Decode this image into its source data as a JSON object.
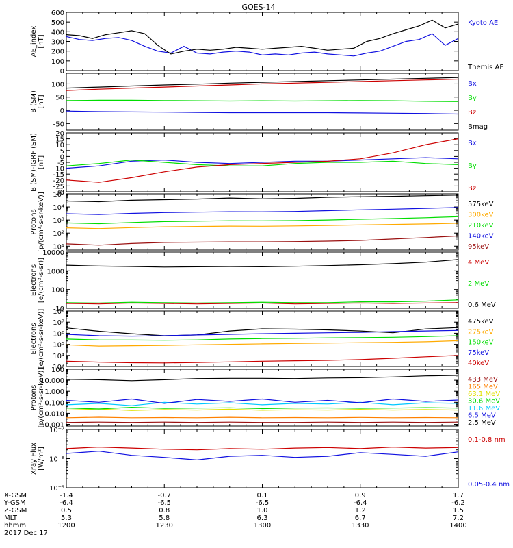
{
  "title": "GOES-14",
  "colors": {
    "black": "#000000",
    "blue": "#1010e0",
    "green": "#00dd00",
    "red": "#cc0000",
    "orange": "#ffaa00",
    "darkred": "#9a1010",
    "darkorange": "#ff8000",
    "yellow": "#e0e000",
    "cyan": "#00c8ff",
    "magenta": "#d000d0"
  },
  "chart_data": [
    {
      "type": "line",
      "ylabel": "AE_index\n[nT]",
      "scale": "linear",
      "ylim": [
        0,
        600
      ],
      "yticks": [
        0,
        100,
        200,
        300,
        400,
        500,
        600
      ],
      "yticklabels": [
        "0",
        "100",
        "200",
        "300",
        "400",
        "500",
        "600"
      ],
      "x": [
        0,
        4,
        8,
        12,
        16,
        20,
        24,
        28,
        32,
        36,
        40,
        44,
        48,
        52,
        56,
        60,
        64,
        68,
        72,
        76,
        80,
        84,
        88,
        92,
        96,
        100,
        104,
        108,
        112,
        116,
        120
      ],
      "series": [
        {
          "name": "Kyoto AE",
          "color": "#1010e0",
          "values": [
            350,
            320,
            310,
            330,
            340,
            310,
            250,
            200,
            180,
            250,
            180,
            170,
            190,
            200,
            190,
            160,
            170,
            160,
            180,
            190,
            170,
            160,
            150,
            180,
            200,
            250,
            300,
            320,
            380,
            260,
            330
          ]
        },
        {
          "name": "Themis AE",
          "color": "#000000",
          "values": [
            370,
            360,
            330,
            370,
            390,
            410,
            380,
            260,
            170,
            200,
            220,
            210,
            220,
            240,
            230,
            220,
            230,
            240,
            250,
            230,
            210,
            220,
            230,
            300,
            330,
            380,
            420,
            460,
            520,
            440,
            480
          ]
        }
      ]
    },
    {
      "type": "line",
      "ylabel": "B (SM)\n[nT]",
      "scale": "linear",
      "ylim": [
        -75,
        140
      ],
      "yticks": [
        -50,
        0,
        50,
        100
      ],
      "yticklabels": [
        "-50",
        "0",
        "50",
        "100"
      ],
      "x": [
        0,
        10,
        20,
        30,
        40,
        50,
        60,
        70,
        80,
        90,
        100,
        110,
        120
      ],
      "series": [
        {
          "name": "Bx",
          "color": "#1010e0",
          "values": [
            -3,
            -5,
            -6,
            -7,
            -8,
            -9,
            -9,
            -9,
            -9,
            -10,
            -11,
            -12,
            -14
          ]
        },
        {
          "name": "By",
          "color": "#00dd00",
          "values": [
            37,
            38,
            38,
            37,
            36,
            35,
            36,
            35,
            36,
            37,
            36,
            34,
            33
          ]
        },
        {
          "name": "Bz",
          "color": "#cc0000",
          "values": [
            75,
            80,
            84,
            88,
            92,
            96,
            100,
            103,
            106,
            109,
            112,
            115,
            118
          ]
        },
        {
          "name": "Bmag",
          "color": "#000000",
          "values": [
            84,
            88,
            92,
            96,
            99,
            103,
            106,
            109,
            112,
            115,
            118,
            121,
            124
          ]
        }
      ]
    },
    {
      "type": "line",
      "ylabel": "B (SM)-IGRF (SM)\n[nT]",
      "scale": "linear",
      "ylim": [
        -30,
        20
      ],
      "yticks": [
        -30,
        -25,
        -20,
        -15,
        -10,
        -5,
        0,
        5,
        10,
        15,
        20
      ],
      "yticklabels": [
        "-30",
        "-25",
        "-20",
        "-15",
        "-10",
        "-5",
        "0",
        "5",
        "10",
        "15",
        "20"
      ],
      "x": [
        0,
        10,
        20,
        30,
        40,
        50,
        60,
        70,
        80,
        90,
        100,
        110,
        120
      ],
      "series": [
        {
          "name": "Bx",
          "color": "#1010e0",
          "values": [
            -10,
            -8,
            -4,
            -3,
            -5,
            -6,
            -5,
            -4,
            -4,
            -3,
            -2,
            -1,
            -2
          ]
        },
        {
          "name": "By",
          "color": "#00dd00",
          "values": [
            -8,
            -6,
            -3,
            -5,
            -7,
            -8,
            -8,
            -6,
            -5,
            -5,
            -4,
            -6,
            -7
          ]
        },
        {
          "name": "Bz",
          "color": "#cc0000",
          "values": [
            -20,
            -22,
            -18,
            -13,
            -9,
            -7,
            -6,
            -5,
            -4,
            -2,
            3,
            10,
            15
          ]
        }
      ]
    },
    {
      "type": "line",
      "ylabel": "Protons\n[p/(cm²-s-sr-keV)]",
      "scale": "log",
      "ylim": [
        5,
        100000
      ],
      "yticks": [
        10,
        100,
        1000,
        10000,
        100000
      ],
      "yticklabels": [
        "10¹",
        "10²",
        "10³",
        "10⁴",
        "10⁵"
      ],
      "x": [
        0,
        10,
        20,
        30,
        40,
        50,
        60,
        70,
        80,
        90,
        100,
        110,
        120
      ],
      "series": [
        {
          "name": "575keV",
          "color": "#000000",
          "values": [
            28000,
            25000,
            32000,
            36000,
            40000,
            48000,
            42000,
            45000,
            55000,
            60000,
            65000,
            72000,
            80000
          ]
        },
        {
          "name": "300keV",
          "color": "#ffaa00",
          "values": [
            250,
            220,
            260,
            300,
            320,
            340,
            330,
            350,
            380,
            420,
            460,
            500,
            560
          ]
        },
        {
          "name": "210keV",
          "color": "#00dd00",
          "values": [
            600,
            520,
            640,
            760,
            820,
            880,
            860,
            900,
            1000,
            1150,
            1300,
            1500,
            1800
          ]
        },
        {
          "name": "140keV",
          "color": "#1010e0",
          "values": [
            3000,
            2600,
            3200,
            3700,
            4000,
            4300,
            4200,
            4500,
            5200,
            6000,
            6800,
            7800,
            9000
          ]
        },
        {
          "name": "95keV",
          "color": "#9a1010",
          "values": [
            15,
            12,
            16,
            19,
            20,
            21,
            21,
            22,
            24,
            27,
            35,
            45,
            60
          ]
        }
      ]
    },
    {
      "type": "line",
      "ylabel": "Electrons\n[e/(cm²-s-sr)]",
      "scale": "log",
      "ylim": [
        10,
        10000
      ],
      "yticks": [
        10,
        100,
        1000,
        10000
      ],
      "yticklabels": [
        "10",
        "100",
        "1000",
        "10000"
      ],
      "x": [
        0,
        10,
        20,
        30,
        40,
        50,
        60,
        70,
        80,
        90,
        100,
        110,
        120
      ],
      "series": [
        {
          "name": "4 MeV",
          "color": "#cc0000",
          "values": [
            18,
            17,
            19,
            18,
            17,
            18,
            19,
            17,
            18,
            19,
            18,
            19,
            20
          ]
        },
        {
          "name": "2 MeV",
          "color": "#00dd00",
          "values": [
            20,
            19,
            21,
            20,
            19,
            20,
            21,
            20,
            20,
            22,
            22,
            24,
            28
          ]
        },
        {
          "name": "0.6 MeV",
          "color": "#000000",
          "values": [
            2000,
            1800,
            1700,
            1600,
            1650,
            1700,
            1650,
            1750,
            1900,
            2100,
            2400,
            2900,
            4000
          ]
        }
      ]
    },
    {
      "type": "line",
      "ylabel": "Electrons\n[e/(cm²-s-sr-keV)]",
      "scale": "log",
      "ylim": [
        1000,
        100000000
      ],
      "yticks": [
        1000,
        10000,
        100000,
        1000000,
        10000000,
        100000000
      ],
      "yticklabels": [
        "10³",
        "10⁴",
        "10⁵",
        "10⁶",
        "10⁷",
        "10⁸"
      ],
      "x": [
        0,
        10,
        20,
        30,
        40,
        50,
        60,
        70,
        80,
        90,
        100,
        110,
        120
      ],
      "series": [
        {
          "name": "475keV",
          "color": "#000000",
          "values": [
            3000000,
            1500000,
            900000,
            600000,
            700000,
            1600000,
            2500000,
            2300000,
            2000000,
            1600000,
            1100000,
            2400000,
            3200000
          ]
        },
        {
          "name": "275keV",
          "color": "#ffaa00",
          "values": [
            90000,
            70000,
            75000,
            80000,
            90000,
            100000,
            110000,
            120000,
            130000,
            140000,
            150000,
            170000,
            210000
          ]
        },
        {
          "name": "150keV",
          "color": "#00dd00",
          "values": [
            300000,
            250000,
            240000,
            230000,
            250000,
            300000,
            330000,
            350000,
            380000,
            400000,
            430000,
            500000,
            600000
          ]
        },
        {
          "name": "75keV",
          "color": "#1010e0",
          "values": [
            800000,
            600000,
            550000,
            600000,
            700000,
            800000,
            900000,
            1000000,
            1100000,
            1200000,
            1400000,
            1600000,
            1800000
          ]
        },
        {
          "name": "40keV",
          "color": "#cc0000",
          "values": [
            3000,
            2500,
            2200,
            2100,
            2300,
            2600,
            3000,
            3300,
            3600,
            4200,
            5500,
            7500,
            10000
          ]
        }
      ]
    },
    {
      "type": "line",
      "ylabel": "Protons\n[p/(cm²-s-sr-keV)]",
      "scale": "log",
      "ylim": [
        0.0007,
        100
      ],
      "yticks": [
        0.001,
        0.01,
        0.1,
        1,
        10,
        100
      ],
      "yticklabels": [
        "0.001",
        "0.010",
        "0.100",
        "1.000",
        "10.000",
        "100"
      ],
      "x": [
        0,
        10,
        20,
        30,
        40,
        50,
        60,
        70,
        80,
        90,
        100,
        110,
        120
      ],
      "series": [
        {
          "name": "433 MeV",
          "color": "#9a1010",
          "values": [
            0.0015,
            0.0016,
            0.0015,
            0.0016,
            0.0015,
            0.0016,
            0.0015,
            0.0015,
            0.0016,
            0.0015,
            0.0016,
            0.0015,
            0.0016
          ]
        },
        {
          "name": "165 MeV",
          "color": "#ff8000",
          "values": [
            0.004,
            0.0045,
            0.004,
            0.0042,
            0.004,
            0.0044,
            0.004,
            0.0042,
            0.004,
            0.0043,
            0.004,
            0.0042,
            0.004
          ]
        },
        {
          "name": "63.1 MeV",
          "color": "#e0e000",
          "values": [
            0.02,
            0.025,
            0.018,
            0.022,
            0.02,
            0.024,
            0.019,
            0.021,
            0.02,
            0.023,
            0.02,
            0.022,
            0.02
          ]
        },
        {
          "name": "30.6 MeV",
          "color": "#00dd00",
          "values": [
            0.03,
            0.025,
            0.035,
            0.028,
            0.03,
            0.032,
            0.027,
            0.03,
            0.031,
            0.029,
            0.03,
            0.033,
            0.03
          ]
        },
        {
          "name": "11.6 MeV",
          "color": "#00c8ff",
          "values": [
            0.06,
            0.08,
            0.05,
            0.1,
            0.07,
            0.09,
            0.06,
            0.08,
            0.07,
            0.1,
            0.06,
            0.09,
            0.08
          ]
        },
        {
          "name": "6.5 MeV",
          "color": "#1010e0",
          "values": [
            0.15,
            0.1,
            0.2,
            0.08,
            0.18,
            0.12,
            0.2,
            0.1,
            0.15,
            0.09,
            0.2,
            0.12,
            0.16
          ]
        },
        {
          "name": "2.5 MeV",
          "color": "#000000",
          "values": [
            12,
            11,
            9,
            11,
            14,
            15,
            15,
            14,
            16,
            17,
            20,
            25,
            28
          ]
        }
      ]
    },
    {
      "type": "line",
      "ylabel": "Xray Flux\n[W/m²]",
      "scale": "log",
      "ylim": [
        1e-09,
        1e-07
      ],
      "yticks": [
        1e-09,
        1e-08,
        1e-07
      ],
      "yticklabels": [
        "10⁻⁹",
        "10⁻⁸",
        "10⁻⁷"
      ],
      "x": [
        0,
        10,
        20,
        30,
        40,
        50,
        60,
        70,
        80,
        90,
        100,
        110,
        120
      ],
      "series": [
        {
          "name": "0.1-0.8 nm",
          "color": "#cc0000",
          "values": [
            2.2e-08,
            2.5e-08,
            2.3e-08,
            2.1e-08,
            2e-08,
            2.2e-08,
            2.1e-08,
            2.3e-08,
            2.4e-08,
            2.2e-08,
            2.5e-08,
            2.3e-08,
            2.4e-08
          ]
        },
        {
          "name": "0.05-0.4 nm",
          "color": "#1010e0",
          "values": [
            1.5e-08,
            1.8e-08,
            1.3e-08,
            1.1e-08,
            9e-09,
            1.2e-08,
            1.3e-08,
            1.1e-08,
            1.2e-08,
            1.6e-08,
            1.4e-08,
            1.2e-08,
            1.7e-08
          ]
        }
      ]
    }
  ],
  "xaxis": {
    "tick_x": [
      0,
      30,
      60,
      90,
      120
    ],
    "rows": [
      {
        "label": "X-GSM",
        "values": [
          "-1.4",
          "-0.7",
          "0.1",
          "0.9",
          "1.7"
        ]
      },
      {
        "label": "Y-GSM",
        "values": [
          "-6.4",
          "-6.5",
          "-6.5",
          "-6.4",
          "-6.2"
        ]
      },
      {
        "label": "Z-GSM",
        "values": [
          "0.5",
          "0.8",
          "1.0",
          "1.2",
          "1.5"
        ]
      },
      {
        "label": "MLT",
        "values": [
          "5.3",
          "5.8",
          "6.3",
          "6.7",
          "7.2"
        ]
      },
      {
        "label": "hhmm",
        "values": [
          "1200",
          "1230",
          "1300",
          "1330",
          "1400"
        ]
      }
    ],
    "date": "2017 Dec 17"
  }
}
